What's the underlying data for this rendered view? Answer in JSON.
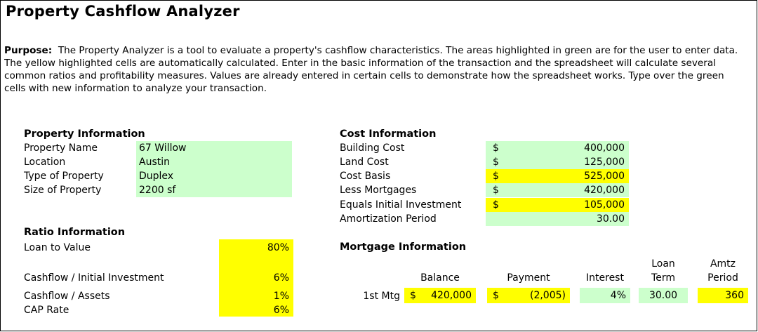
{
  "title": "Property Cashflow Analyzer",
  "purpose": {
    "label": "Purpose:",
    "text": "The Property Analyzer is a tool to evaluate a property's cashflow characteristics.  The areas highlighted in green are for the user to enter data.  The yellow highlighted cells are automatically calculated.  Enter in the basic information of the transaction and the spreadsheet will calculate several common ratios and profitability measures.  Values are already entered in certain cells to demonstrate how the spreadsheet works.  Type over the green cells with new information to analyze your transaction."
  },
  "property_info": {
    "heading": "Property Information",
    "rows": [
      {
        "label": "Property Name",
        "value": "67 Willow"
      },
      {
        "label": "Location",
        "value": "Austin"
      },
      {
        "label": "Type of Property",
        "value": "Duplex"
      },
      {
        "label": "Size of Property",
        "value": "2200 sf"
      }
    ]
  },
  "ratio_info": {
    "heading": "Ratio Information",
    "rows": [
      {
        "label": "Loan to Value",
        "value": "80%"
      },
      {
        "label": "Cashflow / Initial Investment",
        "value": "6%"
      },
      {
        "label": "Cashflow / Assets",
        "value": "1%"
      },
      {
        "label": "CAP Rate",
        "value": "6%"
      }
    ]
  },
  "cost_info": {
    "heading": "Cost Information",
    "currency": "$",
    "rows": [
      {
        "label": "Building Cost",
        "value": "400,000",
        "kind": "input"
      },
      {
        "label": "Land Cost",
        "value": "125,000",
        "kind": "input"
      },
      {
        "label": "Cost Basis",
        "value": "525,000",
        "kind": "calc"
      },
      {
        "label": "Less Mortgages",
        "value": "420,000",
        "kind": "input"
      },
      {
        "label": "Equals Initial Investment",
        "value": "105,000",
        "kind": "calc"
      },
      {
        "label": "Amortization Period",
        "value": "30.00",
        "kind": "input"
      }
    ]
  },
  "mortgage_info": {
    "heading": "Mortgage Information",
    "columns": {
      "balance": "Balance",
      "payment": "Payment",
      "interest": "Interest",
      "loan_term_1": "Loan",
      "loan_term_2": "Term",
      "amtz_1": "Amtz",
      "amtz_2": "Period"
    },
    "row": {
      "label": "1st Mtg",
      "balance_currency": "$",
      "balance": "420,000",
      "payment_currency": "$",
      "payment": "(2,005)",
      "interest": "4%",
      "loan_term": "30.00",
      "amtz_period": "360"
    }
  },
  "colors": {
    "input_green": "#ccffcc",
    "calc_yellow": "#ffff00"
  }
}
